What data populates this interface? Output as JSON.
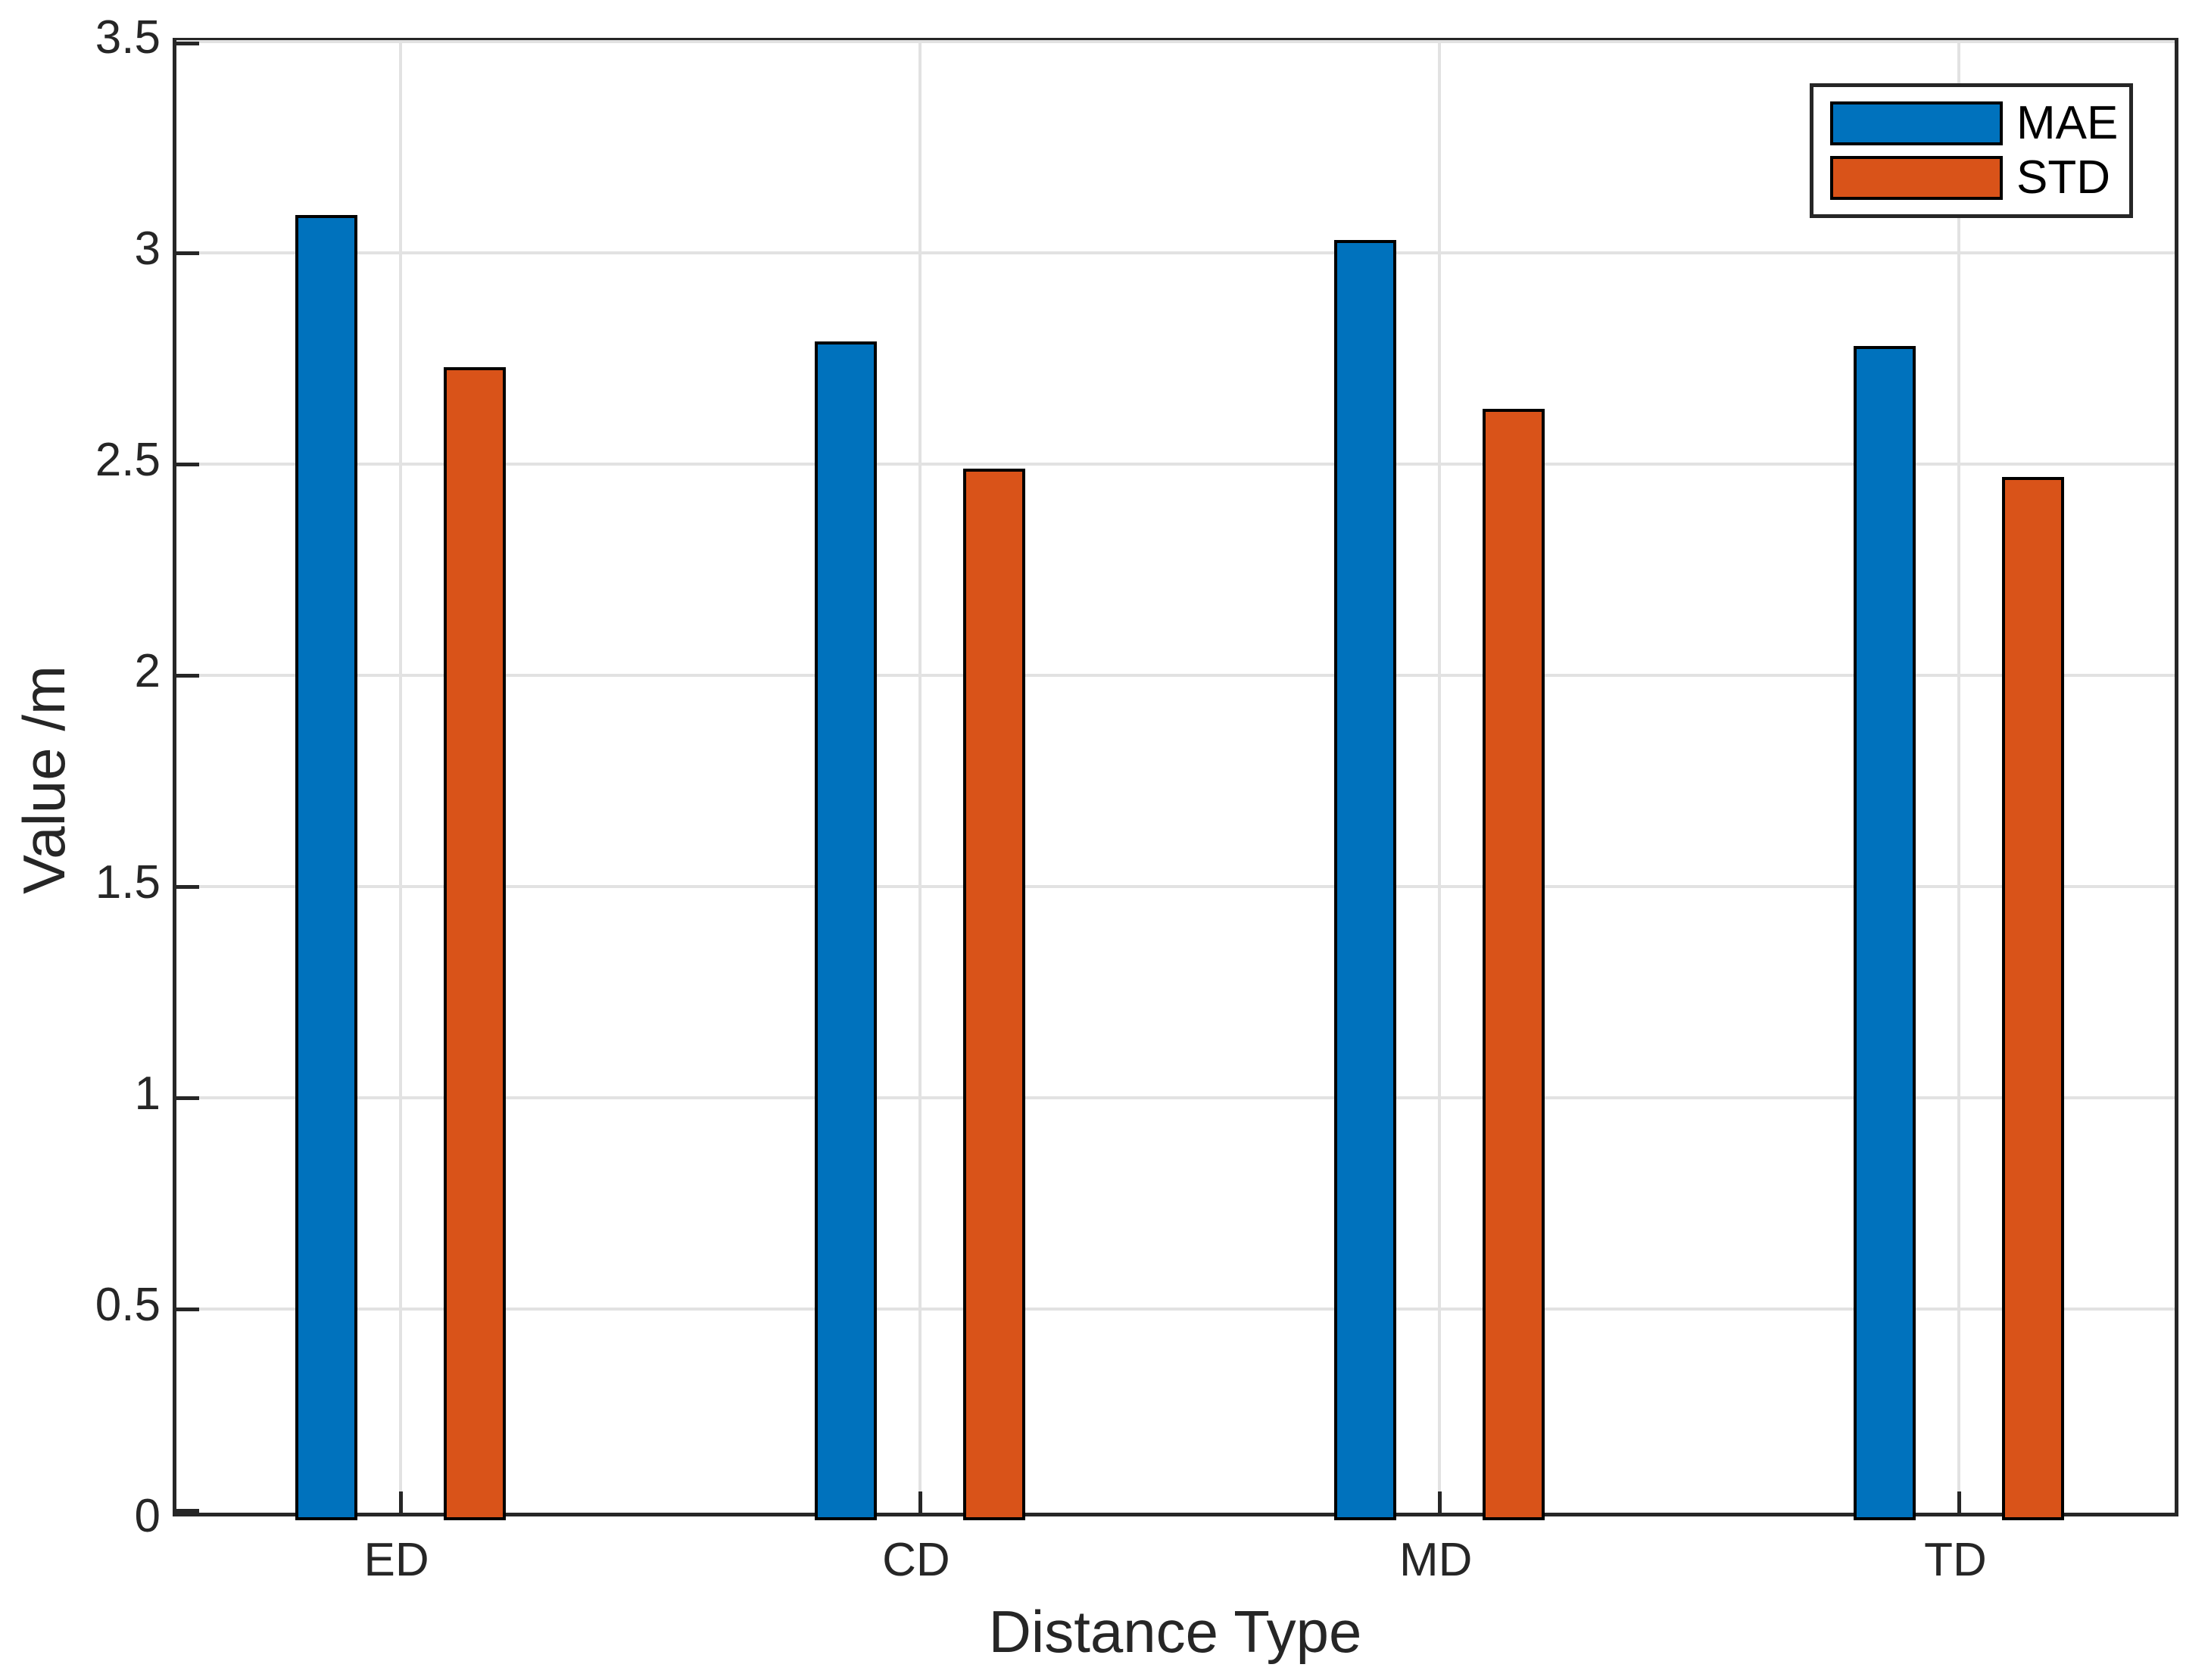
{
  "figure": {
    "background": "#ffffff",
    "axis_color": "#262626",
    "grid_color": "#E2E2E2",
    "bar_edge_color": "#000000"
  },
  "chart_data": {
    "type": "bar",
    "title": "",
    "xlabel": "Distance Type",
    "ylabel": "Value /m",
    "categories": [
      "ED",
      "CD",
      "MD",
      "TD"
    ],
    "series": [
      {
        "name": "MAE",
        "color": "#0072BD",
        "values": [
          3.09,
          2.79,
          3.03,
          2.78
        ]
      },
      {
        "name": "STD",
        "color": "#D95319",
        "values": [
          2.73,
          2.49,
          2.63,
          2.47
        ]
      }
    ],
    "ylim": [
      0,
      3.5
    ],
    "yticks": [
      0,
      0.5,
      1,
      1.5,
      2,
      2.5,
      3,
      3.5
    ],
    "ytick_labels": [
      "0",
      "0.5",
      "1",
      "1.5",
      "2",
      "2.5",
      "3",
      "3.5"
    ],
    "grid": true,
    "legend_position": "top-right"
  }
}
